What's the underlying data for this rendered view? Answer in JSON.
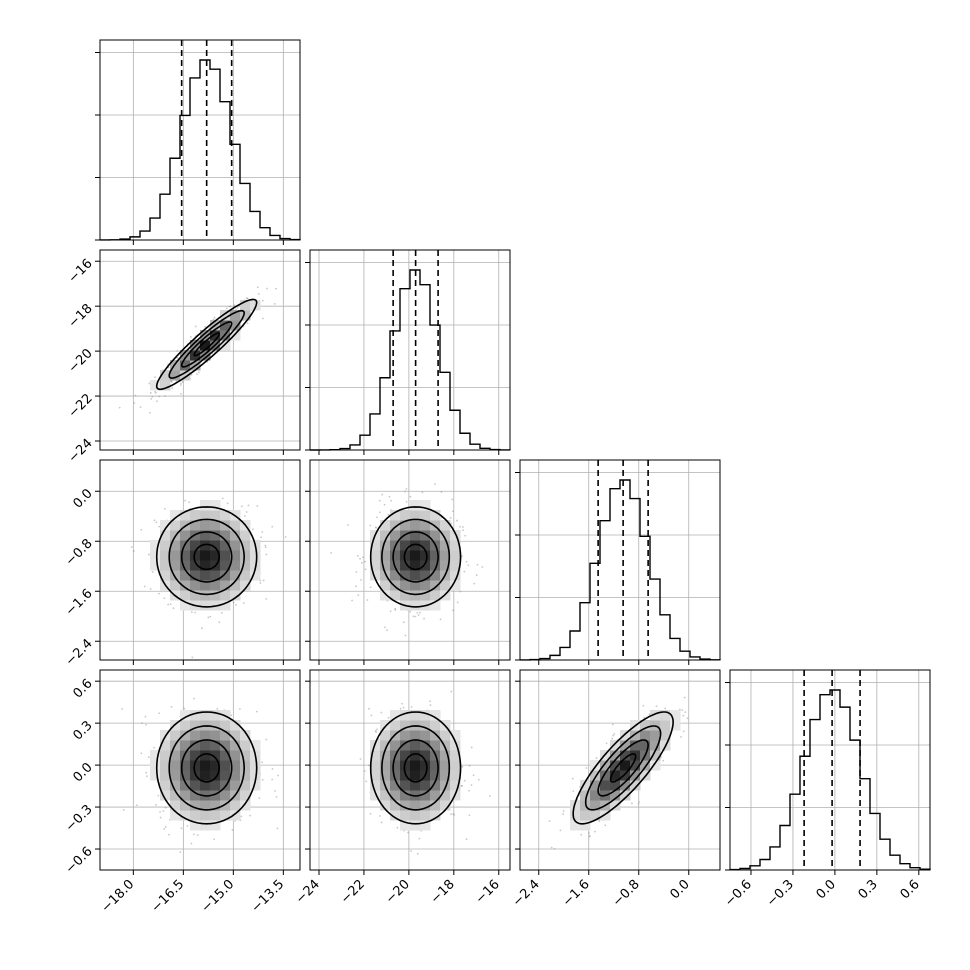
{
  "chart_data": {
    "type": "corner",
    "grid": true,
    "colors": {
      "line": "#000000",
      "grid": "#b0b0b0",
      "scatter": "#9a9a9a",
      "background": "#ffffff"
    },
    "params": [
      {
        "range": [
          -19.0,
          -13.0
        ],
        "ticks": [
          -18.0,
          -16.5,
          -15.0,
          -13.5
        ],
        "tick_labels": [
          "−18.0",
          "−16.5",
          "−15.0",
          "−13.5"
        ],
        "mean": -15.8,
        "sd": 0.75,
        "quantiles": [
          -16.55,
          -15.8,
          -15.05
        ]
      },
      {
        "range": [
          -24.4,
          -15.5
        ],
        "ticks": [
          -24,
          -22,
          -20,
          -18,
          -16
        ],
        "tick_labels": [
          "−24",
          "−22",
          "−20",
          "−18",
          "−16"
        ],
        "mean": -19.7,
        "sd": 1.0,
        "quantiles": [
          -20.7,
          -19.7,
          -18.7
        ]
      },
      {
        "range": [
          -2.7,
          0.5
        ],
        "ticks": [
          -2.4,
          -1.6,
          -0.8,
          0.0
        ],
        "tick_labels": [
          "−2.4",
          "−1.6",
          "−0.8",
          "0.0"
        ],
        "mean": -1.05,
        "sd": 0.4,
        "quantiles": [
          -1.45,
          -1.05,
          -0.65
        ]
      },
      {
        "range": [
          -0.75,
          0.68
        ],
        "ticks": [
          -0.6,
          -0.3,
          0.0,
          0.3,
          0.6
        ],
        "tick_labels": [
          "−0.6",
          "−0.3",
          "0.0",
          "0.3",
          "0.6"
        ],
        "mean": -0.02,
        "sd": 0.2,
        "quantiles": [
          -0.22,
          -0.02,
          0.18
        ]
      }
    ],
    "y_axes": [
      {
        "row": 1,
        "ticks": [
          -24,
          -22,
          -20,
          -18,
          -16
        ],
        "tick_labels": [
          "−24",
          "−22",
          "−20",
          "−18",
          "−16"
        ]
      },
      {
        "row": 2,
        "ticks": [
          -2.4,
          -1.6,
          -0.8,
          0.0
        ],
        "tick_labels": [
          "−2.4",
          "−1.6",
          "−0.8",
          "0.0"
        ]
      },
      {
        "row": 3,
        "ticks": [
          -0.6,
          -0.3,
          0.0,
          0.3,
          0.6
        ],
        "tick_labels": [
          "−0.6",
          "−0.3",
          "0.0",
          "0.3",
          "0.6"
        ]
      }
    ],
    "correlations": [
      {
        "row": 1,
        "col": 0,
        "rho": 0.93
      },
      {
        "row": 2,
        "col": 0,
        "rho": 0.0
      },
      {
        "row": 2,
        "col": 1,
        "rho": 0.0
      },
      {
        "row": 3,
        "col": 0,
        "rho": 0.0
      },
      {
        "row": 3,
        "col": 1,
        "rho": 0.0
      },
      {
        "row": 3,
        "col": 2,
        "rho": 0.82
      }
    ],
    "contour_levels_sigma": [
      0.5,
      1.0,
      1.5,
      2.0
    ],
    "histogram_bins": 20
  }
}
